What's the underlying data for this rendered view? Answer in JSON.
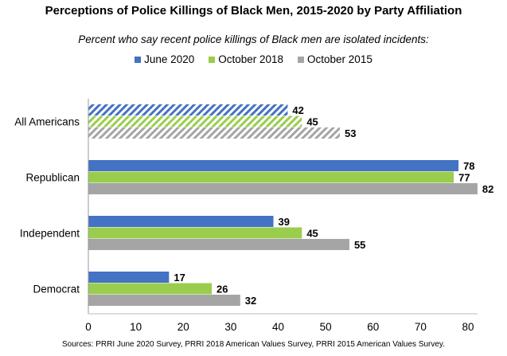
{
  "chart_data": {
    "type": "bar",
    "orientation": "horizontal",
    "title": "Perceptions of Police Killings of Black Men, 2015-2020 by Party Affiliation",
    "subtitle": "Percent who say recent police killings of Black men are isolated incidents:",
    "categories": [
      "All Americans",
      "Republican",
      "Independent",
      "Democrat"
    ],
    "series": [
      {
        "name": "June 2020",
        "color": "#4472c4",
        "values": [
          42,
          78,
          39,
          17
        ]
      },
      {
        "name": "October 2018",
        "color": "#9acd4e",
        "values": [
          45,
          77,
          45,
          26
        ]
      },
      {
        "name": "October 2015",
        "color": "#a5a5a5",
        "values": [
          53,
          82,
          55,
          32
        ]
      }
    ],
    "hatched_categories": [
      "All Americans"
    ],
    "xlim": [
      0,
      80
    ],
    "xticks": [
      0,
      10,
      20,
      30,
      40,
      50,
      60,
      70,
      80
    ],
    "grid": false,
    "legend_position": "top",
    "source": "Sources: PRRI June 2020 Survey, PRRI 2018 American Values Survey, PRRI 2015 American Values Survey."
  }
}
